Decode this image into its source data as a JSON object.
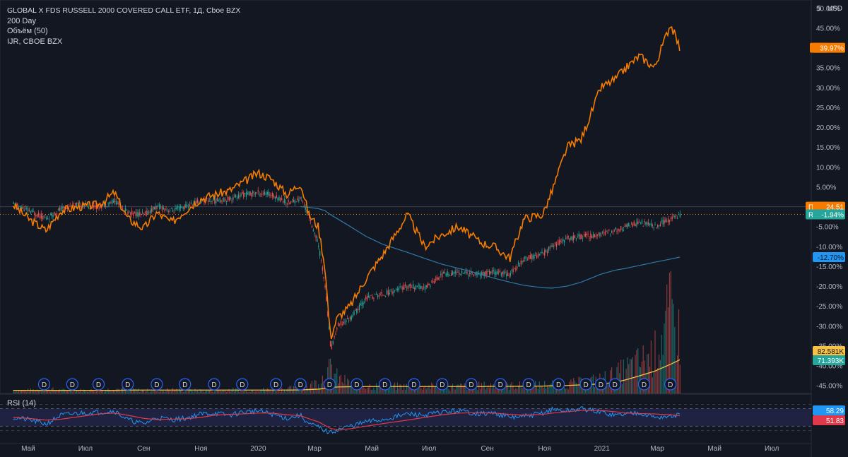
{
  "legend": {
    "title": "GLOBAL X FDS RUSSELL 2000 COVERED CALL ETF, 1Д, Cboe BZX",
    "ma": "200 Day",
    "volume": "Объём (50)",
    "compare": "IJR, CBOE BZX"
  },
  "top_right": {
    "num": "5",
    "currency": "USD"
  },
  "rsi_title": "RSI (14)",
  "colors": {
    "background": "#131722",
    "ijr": "#f57c00",
    "candle_up": "#26a69a",
    "candle_down": "#ef5350",
    "ma200": "#2e7aa8",
    "volume_ma": "#f7c244",
    "rsi": "#2196f3",
    "rsi_ma": "#e0394b"
  },
  "chart_data": {
    "type": "line",
    "x": [
      "2019-04-15",
      "2019-05-01",
      "2019-05-20",
      "2019-06-05",
      "2019-06-25",
      "2019-07-15",
      "2019-08-01",
      "2019-08-15",
      "2019-09-01",
      "2019-09-15",
      "2019-10-01",
      "2019-10-15",
      "2019-11-01",
      "2019-11-15",
      "2019-12-01",
      "2019-12-15",
      "2020-01-01",
      "2020-01-15",
      "2020-02-01",
      "2020-02-15",
      "2020-02-24",
      "2020-03-05",
      "2020-03-12",
      "2020-03-18",
      "2020-03-25",
      "2020-04-08",
      "2020-04-25",
      "2020-05-13",
      "2020-06-08",
      "2020-06-26",
      "2020-07-15",
      "2020-08-01",
      "2020-08-25",
      "2020-09-08",
      "2020-09-25",
      "2020-10-10",
      "2020-10-30",
      "2020-11-09",
      "2020-11-25",
      "2020-12-10",
      "2020-12-31",
      "2021-01-15",
      "2021-01-27",
      "2021-02-10",
      "2021-02-26",
      "2021-03-15",
      "2021-03-25"
    ],
    "axis_x_ticks": [
      "Май",
      "Июл",
      "Сен",
      "Ноя",
      "2020",
      "Мар",
      "Май",
      "Июл",
      "Сен",
      "Ноя",
      "2021",
      "Мар",
      "Май",
      "Июл"
    ],
    "axis_y_ticks": [
      "50.00%",
      "45.00%",
      "40.00%",
      "35.00%",
      "30.00%",
      "25.00%",
      "20.00%",
      "15.00%",
      "10.00%",
      "5.00%",
      "-5.00%",
      "-10.00%",
      "-15.00%",
      "-20.00%",
      "-25.00%",
      "-30.00%",
      "-35.00%",
      "-40.00%",
      "-45.00%"
    ],
    "ylim": [
      -47,
      52
    ],
    "series": [
      {
        "name": "IJR",
        "values": [
          0.5,
          -3.0,
          -6.0,
          -1.0,
          0.0,
          0.5,
          3.5,
          -3.0,
          -5.5,
          -1.5,
          -4.0,
          -1.0,
          2.0,
          3.0,
          4.0,
          6.0,
          8.5,
          7.0,
          3.0,
          6.0,
          -2.0,
          -5.0,
          -15.0,
          -33.0,
          -28.0,
          -25.0,
          -18.0,
          -12.0,
          -2.0,
          -10.0,
          -7.0,
          -5.0,
          -9.0,
          -10.0,
          -13.0,
          -3.0,
          -2.0,
          4.0,
          15.0,
          17.0,
          30.0,
          32.0,
          35.0,
          38.0,
          35.0,
          46.0,
          40.0
        ]
      },
      {
        "name": "RYLD",
        "values": [
          0.5,
          -1.0,
          -3.0,
          -0.5,
          0.5,
          0.0,
          1.5,
          -1.5,
          -2.0,
          0.0,
          -1.0,
          0.0,
          1.5,
          1.5,
          2.0,
          3.0,
          3.5,
          3.0,
          1.0,
          2.0,
          -2.5,
          -10.0,
          -20.0,
          -36.0,
          -30.0,
          -28.0,
          -23.0,
          -22.0,
          -20.0,
          -20.5,
          -17.0,
          -16.5,
          -17.0,
          -16.5,
          -17.0,
          -13.0,
          -12.0,
          -10.0,
          -8.0,
          -7.5,
          -7.0,
          -6.0,
          -5.0,
          -4.0,
          -5.0,
          -3.0,
          -1.94
        ]
      },
      {
        "name": "200 Day",
        "values": [
          null,
          null,
          null,
          null,
          null,
          null,
          null,
          null,
          null,
          null,
          null,
          null,
          null,
          null,
          null,
          null,
          null,
          null,
          null,
          0.0,
          -0.2,
          -0.5,
          -1.0,
          -2.0,
          -3.0,
          -5.0,
          -7.5,
          -9.5,
          -11.5,
          -13.0,
          -14.5,
          -15.5,
          -17.0,
          -18.0,
          -19.0,
          -19.8,
          -20.4,
          -20.5,
          -20.0,
          -19.0,
          -17.0,
          -16.0,
          -15.5,
          -14.8,
          -14.0,
          -13.2,
          -12.7
        ]
      }
    ],
    "volume": {
      "ylim": [
        0,
        6
      ],
      "values": [
        0.2,
        0.2,
        0.3,
        0.2,
        0.2,
        0.2,
        0.3,
        0.25,
        0.2,
        0.2,
        0.25,
        0.2,
        0.2,
        0.2,
        0.25,
        0.2,
        0.25,
        0.25,
        0.3,
        0.35,
        0.5,
        0.8,
        1.2,
        1.6,
        1.0,
        0.6,
        0.5,
        0.45,
        0.45,
        0.45,
        0.45,
        0.45,
        0.5,
        0.5,
        0.5,
        0.5,
        0.55,
        0.6,
        0.6,
        0.7,
        0.9,
        1.2,
        1.6,
        2.0,
        2.6,
        5.2,
        3.5
      ],
      "ma_values": [
        0.2,
        0.2,
        0.2,
        0.2,
        0.2,
        0.2,
        0.2,
        0.22,
        0.22,
        0.22,
        0.22,
        0.22,
        0.22,
        0.22,
        0.22,
        0.22,
        0.22,
        0.22,
        0.22,
        0.23,
        0.25,
        0.28,
        0.32,
        0.38,
        0.42,
        0.44,
        0.45,
        0.45,
        0.45,
        0.45,
        0.45,
        0.45,
        0.45,
        0.46,
        0.46,
        0.47,
        0.48,
        0.5,
        0.52,
        0.56,
        0.62,
        0.72,
        0.9,
        1.15,
        1.45,
        1.9,
        2.2
      ]
    },
    "dividend_marker": "D",
    "dividend_dates": [
      "2019-05-18",
      "2019-06-17",
      "2019-07-15",
      "2019-08-15",
      "2019-09-15",
      "2019-10-15",
      "2019-11-15",
      "2019-12-15",
      "2020-01-20",
      "2020-02-15",
      "2020-03-17",
      "2020-04-15",
      "2020-05-15",
      "2020-06-15",
      "2020-07-15",
      "2020-08-15",
      "2020-09-15",
      "2020-10-15",
      "2020-11-16",
      "2020-12-15",
      "2020-12-31",
      "2021-01-15",
      "2021-02-15",
      "2021-03-15"
    ],
    "rsi": {
      "levels": [
        70,
        30
      ],
      "values": [
        50,
        45,
        35,
        55,
        60,
        62,
        65,
        45,
        35,
        50,
        45,
        48,
        58,
        60,
        55,
        62,
        65,
        58,
        48,
        55,
        35,
        28,
        20,
        15,
        22,
        30,
        40,
        45,
        58,
        55,
        62,
        65,
        58,
        60,
        50,
        52,
        60,
        68,
        65,
        70,
        62,
        55,
        58,
        62,
        50,
        52,
        56
      ],
      "ma_values": [
        50,
        48,
        44,
        46,
        52,
        58,
        60,
        55,
        48,
        45,
        46,
        47,
        50,
        55,
        57,
        58,
        60,
        60,
        56,
        54,
        47,
        40,
        32,
        25,
        22,
        24,
        30,
        36,
        44,
        50,
        56,
        60,
        61,
        60,
        57,
        55,
        57,
        60,
        63,
        66,
        66,
        63,
        60,
        59,
        58,
        56,
        54
      ]
    },
    "price_labels": [
      {
        "name": "IJR",
        "value": "39.97%"
      },
      {
        "name": "Пре-",
        "value": "24.51"
      },
      {
        "name": "RYLD",
        "value": "-1.94%"
      },
      {
        "name": "",
        "value": "-12.70%"
      },
      {
        "name": "",
        "value": "82.581K"
      },
      {
        "name": "",
        "value": "71.393K"
      },
      {
        "name": "",
        "value": "58.29"
      },
      {
        "name": "",
        "value": "51.83"
      }
    ]
  }
}
